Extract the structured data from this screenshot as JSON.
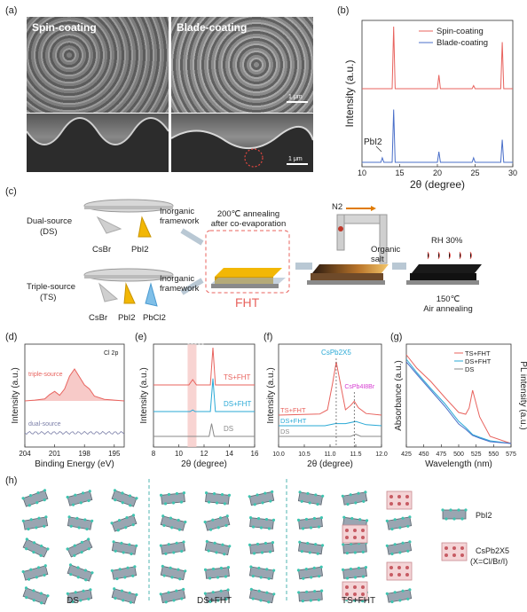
{
  "panel_labels": {
    "a": "(a)",
    "b": "(b)",
    "c": "(c)",
    "d": "(d)",
    "e": "(e)",
    "f": "(f)",
    "g": "(g)",
    "h": "(h)"
  },
  "panel_a": {
    "left_title": "Spin-coating",
    "right_title": "Blade-coating",
    "scale_top": "1 μm",
    "scale_bottom": "1 μm"
  },
  "panel_c": {
    "dual_source": [
      "Dual-source",
      "(DS)"
    ],
    "triple_source": [
      "Triple-source",
      "(TS)"
    ],
    "inorganic_framework_1": [
      "Inorganic",
      "framework"
    ],
    "inorganic_framework_2": [
      "Inorganic",
      "framework"
    ],
    "csbr_1": "CsBr",
    "pbi2_1": "PbI2",
    "csbr_2": "CsBr",
    "pbi2_2": "PbI2",
    "pbcl2": "PbCl2",
    "anneal_text": [
      "200℃ annealing",
      "after co-evaporation"
    ],
    "fht": "FHT",
    "n2": "N2",
    "organic_salt": [
      "Organic",
      "salt"
    ],
    "rh": "RH 30%",
    "air_anneal": [
      "150℃",
      "Air annealing"
    ]
  },
  "panel_h": {
    "ds": "DS",
    "ds_fht": "DS+FHT",
    "ts_fht": "TS+FHT",
    "legend_pbi2": "PbI2",
    "legend_cspb2x5": "CsPb2X5",
    "legend_x": "(X=Cl/Br/I)"
  },
  "colors": {
    "red": "#e8635e",
    "blue": "#4a6fc9",
    "cyan": "#2aa9d6",
    "gray": "#8a8a8a",
    "gold": "#f2b705",
    "teal": "#3ec4b0"
  },
  "chart_data": [
    {
      "id": "b",
      "type": "line",
      "xlabel": "2θ (degree)",
      "ylabel": "Intensity (a.u.)",
      "xlim": [
        10,
        30
      ],
      "xticks": [
        "10",
        "15",
        "20",
        "25",
        "30"
      ],
      "annotation": "PbI2",
      "series": [
        {
          "name": "Spin-coating",
          "x": [
            10,
            12,
            12.6,
            12.7,
            14.0,
            14.2,
            14.4,
            16,
            20.0,
            20.2,
            20.4,
            24,
            24.6,
            24.8,
            25.0,
            28.4,
            28.6,
            28.8,
            30
          ],
          "y": [
            0,
            0,
            0,
            0,
            0,
            100,
            0,
            0,
            0,
            22,
            0,
            0,
            0,
            5,
            0,
            0,
            75,
            0,
            0
          ]
        },
        {
          "name": "Blade-coating",
          "x": [
            10,
            12,
            12.5,
            12.7,
            12.9,
            14.0,
            14.2,
            14.4,
            16,
            20.0,
            20.2,
            20.4,
            24,
            24.6,
            24.8,
            25.0,
            28.4,
            28.6,
            28.8,
            30
          ],
          "y": [
            0,
            0,
            0,
            6,
            0,
            0,
            70,
            0,
            0,
            0,
            14,
            0,
            0,
            0,
            6,
            0,
            0,
            30,
            0,
            0
          ]
        }
      ]
    },
    {
      "id": "d",
      "type": "line",
      "xlabel": "Binding Energy (eV)",
      "ylabel": "Intensity (a.u.)",
      "xlim": [
        204,
        194
      ],
      "xticks": [
        "204",
        "201",
        "198",
        "195"
      ],
      "annotation": "Cl 2p",
      "series": [
        {
          "name": "triple-source",
          "x": [
            204,
            203,
            202,
            201.5,
            201,
            200.5,
            200,
            199.5,
            199,
            198.5,
            198,
            197.5,
            197,
            196,
            195,
            194
          ],
          "y": [
            0,
            2,
            5,
            16,
            24,
            14,
            30,
            62,
            80,
            60,
            40,
            30,
            12,
            4,
            2,
            0
          ]
        },
        {
          "name": "dual-source",
          "x": [
            204,
            202,
            200,
            198,
            196,
            194
          ],
          "y": [
            0,
            0,
            0,
            0,
            0,
            0
          ]
        }
      ]
    },
    {
      "id": "e",
      "type": "line",
      "xlabel": "2θ (degree)",
      "ylabel": "Intensity (a.u.)",
      "xlim": [
        8,
        16
      ],
      "xticks": [
        "8",
        "10",
        "12",
        "14",
        "16"
      ],
      "series": [
        {
          "name": "TS+FHT",
          "x": [
            8,
            10.8,
            11.1,
            11.4,
            12.5,
            12.7,
            12.9,
            16
          ],
          "y": [
            0,
            0,
            10,
            0,
            0,
            70,
            0,
            0
          ]
        },
        {
          "name": "DS+FHT",
          "x": [
            8,
            10.9,
            11.1,
            11.3,
            12.5,
            12.7,
            12.9,
            16
          ],
          "y": [
            0,
            0,
            3,
            0,
            0,
            62,
            0,
            0
          ]
        },
        {
          "name": "DS",
          "x": [
            8,
            12.4,
            12.6,
            12.8,
            16
          ],
          "y": [
            0,
            0,
            24,
            0,
            0
          ]
        }
      ]
    },
    {
      "id": "f",
      "type": "line",
      "xlabel": "2θ (degree)",
      "ylabel": "Intensity (a.u.)",
      "xlim": [
        10.0,
        12.0
      ],
      "xticks": [
        "10.0",
        "10.5",
        "11.0",
        "11.5",
        "12.0"
      ],
      "annotations": [
        "CsPb2X5",
        "CsPb4I8Br"
      ],
      "series": [
        {
          "name": "TS+FHT",
          "x": [
            10.0,
            10.8,
            10.95,
            11.05,
            11.12,
            11.2,
            11.3,
            11.4,
            11.47,
            11.55,
            11.7,
            12.0
          ],
          "y": [
            0,
            2,
            10,
            60,
            100,
            60,
            10,
            18,
            26,
            14,
            3,
            0
          ]
        },
        {
          "name": "DS+FHT",
          "x": [
            10.0,
            10.9,
            11.1,
            11.3,
            11.5,
            11.7,
            12.0
          ],
          "y": [
            0,
            0,
            4,
            4,
            8,
            2,
            0
          ]
        },
        {
          "name": "DS",
          "x": [
            10.0,
            11.0,
            11.4,
            11.5,
            11.6,
            12.0
          ],
          "y": [
            0,
            0,
            0,
            4,
            0,
            0
          ]
        }
      ]
    },
    {
      "id": "g",
      "type": "line",
      "xlabel": "Wavelength (nm)",
      "ylabel": "Absorbance (a.u.)",
      "ylabel_right": "PL intensity (a.u.)",
      "xlim": [
        425,
        575
      ],
      "xticks": [
        "425",
        "450",
        "475",
        "500",
        "525",
        "550",
        "575"
      ],
      "series": [
        {
          "name": "TS+FHT",
          "x": [
            425,
            440,
            460,
            480,
            500,
            510,
            515,
            520,
            530,
            545,
            575
          ],
          "y": [
            100,
            85,
            70,
            52,
            35,
            33,
            40,
            60,
            30,
            8,
            0
          ]
        },
        {
          "name": "DS+FHT",
          "x": [
            425,
            440,
            460,
            480,
            500,
            510,
            520,
            530,
            545,
            575
          ],
          "y": [
            95,
            80,
            62,
            45,
            25,
            18,
            10,
            7,
            3,
            0
          ]
        },
        {
          "name": "DS",
          "x": [
            425,
            440,
            460,
            480,
            500,
            510,
            520,
            530,
            545,
            575
          ],
          "y": [
            92,
            78,
            60,
            42,
            22,
            16,
            9,
            6,
            2,
            0
          ]
        }
      ]
    }
  ]
}
